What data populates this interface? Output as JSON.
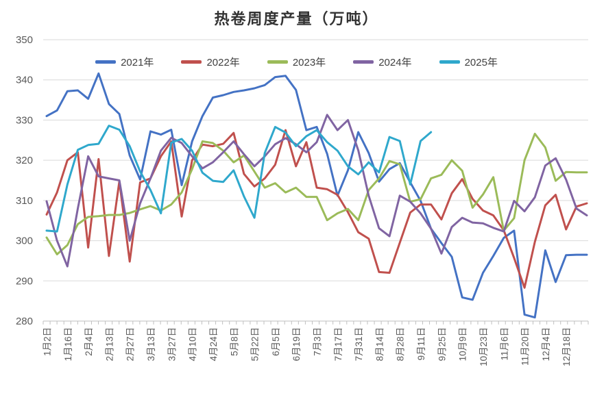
{
  "chart_data": {
    "type": "line",
    "title": "热卷周度产量（万吨）",
    "ylim": [
      280,
      350
    ],
    "ytick_step": 10,
    "ytick_labels": [
      "280",
      "290",
      "300",
      "310",
      "320",
      "330",
      "340",
      "350"
    ],
    "grid": "horizontal",
    "legend_position": "top",
    "n_points": 53,
    "label_every": 2,
    "x_labels": [
      "1月2日",
      "1月16日",
      "2月4日",
      "2月13日",
      "2月27日",
      "3月13日",
      "3月27日",
      "4月10日",
      "4月24日",
      "5月8日",
      "5月22日",
      "6月5日",
      "6月19日",
      "7月3日",
      "7月17日",
      "7月31日",
      "8月14日",
      "8月28日",
      "9月11日",
      "9月25日",
      "10月9日",
      "10月23日",
      "11月6日",
      "11月20日",
      "12月4日",
      "12月18日"
    ],
    "series": [
      {
        "name": "2021年",
        "color": "#4472C4",
        "values": [
          331,
          332.4,
          337.2,
          337.4,
          335.3,
          341.6,
          334,
          331.5,
          321.2,
          315.2,
          327.2,
          326.4,
          327.6,
          313.8,
          324.7,
          331,
          335.6,
          336.2,
          337,
          337.4,
          337.9,
          338.7,
          340.7,
          341,
          337.5,
          327.5,
          328.3,
          321.6,
          311.2,
          317.5,
          327,
          321.8,
          314.7,
          317.8,
          319.3,
          314.5,
          309.9,
          303,
          299.4,
          296,
          285.9,
          285.3,
          292,
          296.2,
          300.7,
          302.5,
          281.6,
          280.9,
          297.6,
          289.7,
          296.4,
          296.5,
          296.5
        ]
      },
      {
        "name": "2022年",
        "color": "#C0504D",
        "values": [
          306.5,
          312,
          320,
          322,
          298.3,
          320.3,
          296.2,
          314.8,
          294.8,
          314.5,
          315.5,
          321,
          324.7,
          306,
          320,
          323.9,
          323.5,
          324.1,
          326.8,
          316.6,
          313.5,
          315.5,
          318.9,
          327.5,
          318.5,
          324.5,
          313.2,
          312.8,
          311.4,
          307.1,
          302.1,
          300.5,
          292.2,
          292,
          299.5,
          307,
          309,
          309,
          305.3,
          311.8,
          315.3,
          310.4,
          307.5,
          306.3,
          302.6,
          295.7,
          288.3,
          299.7,
          308.8,
          311.4,
          302.8,
          308.5,
          309.3
        ]
      },
      {
        "name": "2023年",
        "color": "#9BBB59",
        "values": [
          300.8,
          296.6,
          298.9,
          304.1,
          305.9,
          306.1,
          306.4,
          306.4,
          306.9,
          307.8,
          308.6,
          307.5,
          309,
          312,
          317.8,
          324.7,
          324.3,
          322.4,
          319.5,
          321.2,
          317.2,
          313.2,
          314.3,
          312,
          313.2,
          310.9,
          310.9,
          305.1,
          306.8,
          307.9,
          305.1,
          312.6,
          315.5,
          319.8,
          319,
          309.7,
          310.3,
          315.5,
          316.4,
          320,
          317.4,
          308.2,
          311.5,
          315.8,
          302.5,
          305.6,
          320,
          326.6,
          323.2,
          314.9,
          317.1,
          317,
          317
        ]
      },
      {
        "name": "2024年",
        "color": "#8064A2",
        "values": [
          309.8,
          300,
          293.6,
          308,
          321,
          316,
          315.5,
          315,
          300,
          309.3,
          315.5,
          322.4,
          325.6,
          324.3,
          321,
          318,
          319.5,
          322,
          324.7,
          321.5,
          318.5,
          321,
          324,
          325.5,
          324,
          322,
          324.5,
          331.3,
          327.5,
          330,
          322.5,
          311.2,
          303.1,
          301.1,
          311.2,
          309.7,
          306.8,
          303,
          296.8,
          303.4,
          305.7,
          304.5,
          304.3,
          303.2,
          302.3,
          309.9,
          307.3,
          310.8,
          318.7,
          320.5,
          315.2,
          308,
          306.3
        ]
      },
      {
        "name": "2025年",
        "color": "#2FA8CC",
        "values": [
          302.5,
          302.3,
          314,
          322.6,
          323.8,
          324.1,
          328.6,
          327.6,
          323.5,
          317.2,
          312.6,
          306.8,
          324.4,
          325.3,
          322.4,
          316.9,
          314.9,
          314.6,
          317.5,
          311,
          305.7,
          321.8,
          328.3,
          326.9,
          323.5,
          326,
          327.5,
          324.5,
          322.4,
          318.5,
          316.5,
          319.5,
          317,
          325.8,
          324.8,
          314,
          324.8,
          327
        ]
      }
    ]
  },
  "style": {
    "grid_color": "#D9D9D9",
    "axis_color": "#BFBFBF",
    "tick_label_color": "#595959",
    "line_width": 3
  }
}
